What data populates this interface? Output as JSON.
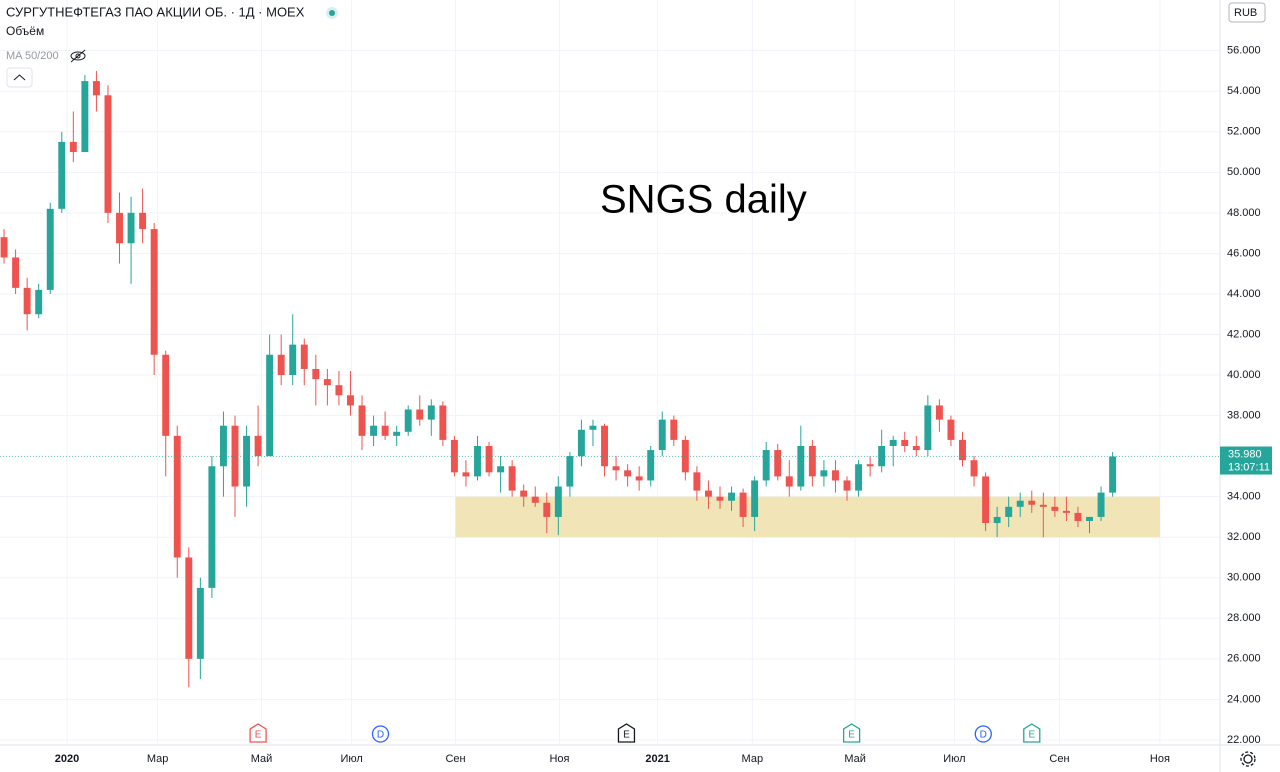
{
  "header": {
    "symbol": "СУРГУТНЕФТЕГАЗ ПАО АКЦИИ ОБ. · 1Д · MOEX",
    "volume_label": "Объём",
    "ma_label": "MA 50/200",
    "currency": "RUB"
  },
  "chart_data": {
    "type": "candlestick",
    "annotation": "SNGS daily",
    "up_color": "#26a69a",
    "down_color": "#ef5350",
    "grid": true,
    "categories": [
      null,
      null,
      null,
      null,
      null,
      null,
      null,
      null,
      null,
      null,
      null,
      null,
      null,
      null,
      null,
      null,
      null,
      null,
      null,
      null,
      null,
      null,
      null,
      null,
      null,
      null,
      null,
      null,
      null,
      null,
      null,
      null,
      null,
      null,
      null,
      null,
      null,
      null,
      null,
      null,
      null,
      null,
      null,
      null,
      null,
      null,
      null,
      null,
      null,
      null,
      null,
      null,
      null,
      null,
      null,
      null,
      null,
      null,
      null,
      null,
      null,
      null,
      null,
      null,
      null,
      null,
      null,
      null,
      null,
      null,
      null,
      null,
      null,
      null,
      null,
      null,
      null,
      null,
      null,
      null,
      null,
      null,
      null,
      null,
      null,
      null,
      null,
      null,
      null,
      null,
      null,
      null,
      null,
      null,
      null,
      null,
      null
    ],
    "open": [
      46.8,
      45.8,
      44.3,
      43,
      44.2,
      48.2,
      51.5,
      51,
      54.5,
      53.8,
      48,
      46.5,
      48,
      47.2,
      41,
      37,
      31,
      26,
      29.5,
      35.5,
      37.5,
      34.5,
      37,
      36,
      41,
      40,
      41.5,
      40.3,
      39.8,
      39.5,
      39,
      38.5,
      37,
      37.5,
      37,
      37.2,
      38.3,
      37.8,
      38.5,
      36.8,
      35.2,
      35,
      36.5,
      35.2,
      35.5,
      34.3,
      34,
      33.7,
      33,
      34.5,
      36,
      37.3,
      37.5,
      35.5,
      35.3,
      35,
      34.8,
      36.3,
      37.8,
      36.8,
      35.2,
      34.3,
      34,
      33.8,
      34.2,
      33,
      34.8,
      36.3,
      35,
      34.5,
      36.5,
      35,
      35.3,
      34.8,
      34.3,
      35.6,
      35.5,
      36.5,
      36.8,
      36.5,
      36.3,
      38.5,
      37.8,
      36.8,
      35.8,
      35,
      32.7,
      33,
      33.5,
      33.8,
      33.6,
      33.5,
      33.3,
      33.2,
      32.8,
      33,
      34.2
    ],
    "high": [
      47.2,
      46.2,
      44.8,
      44.5,
      48.5,
      52,
      53,
      54.8,
      55,
      54.3,
      49,
      48.8,
      49.2,
      47.5,
      41.2,
      37.5,
      31.5,
      30,
      36,
      38.2,
      38,
      37.5,
      38.5,
      42,
      42,
      43,
      41.8,
      41,
      40.3,
      40.2,
      40.2,
      39,
      38,
      38.2,
      37.5,
      38.5,
      39,
      38.8,
      38.7,
      37,
      35.8,
      37,
      36.7,
      36,
      35.8,
      34.6,
      34.5,
      34.2,
      35,
      36.2,
      37.8,
      37.8,
      37.6,
      36,
      35.6,
      35.5,
      36.5,
      38.2,
      38,
      37,
      35.5,
      34.8,
      34.5,
      34.5,
      34.4,
      35,
      36.7,
      36.6,
      35.8,
      37.5,
      36.8,
      35.8,
      35.8,
      35,
      35.8,
      36,
      37.3,
      37,
      37.2,
      37,
      39,
      38.8,
      38,
      37.2,
      36,
      35.2,
      33.5,
      34,
      34.2,
      34.3,
      34.2,
      34,
      34,
      33.5,
      33,
      34.5,
      36.2
    ],
    "low": [
      45.5,
      44,
      42.2,
      42.8,
      44,
      48,
      50.5,
      51,
      53,
      47.5,
      45.5,
      44.5,
      46.5,
      40,
      35,
      30,
      24.6,
      25,
      29,
      34,
      33,
      33.5,
      35.5,
      36,
      39.5,
      39.5,
      39.5,
      38.5,
      38.5,
      38.5,
      38,
      36.3,
      36.5,
      36.8,
      36.5,
      37,
      37.5,
      37,
      36.5,
      35,
      34.5,
      34.8,
      35,
      34.2,
      34,
      33.5,
      33.5,
      32.2,
      32.1,
      34,
      35.5,
      36.5,
      35,
      34.8,
      34.5,
      34.3,
      34.5,
      36,
      36.5,
      34.8,
      33.8,
      33.4,
      33.4,
      33.3,
      32.5,
      32.3,
      34.5,
      34.8,
      34,
      34.3,
      34.5,
      34.5,
      34.2,
      33.8,
      34,
      35,
      35.2,
      35.5,
      36.2,
      36,
      36,
      37.2,
      36.5,
      35.5,
      34.5,
      32.3,
      32,
      32.5,
      33,
      33.2,
      32,
      33,
      32.8,
      32.5,
      32.2,
      32.8,
      34
    ],
    "close": [
      45.8,
      44.3,
      43,
      44.2,
      48.2,
      51.5,
      51,
      54.5,
      53.8,
      48,
      46.5,
      48,
      47.2,
      41,
      37,
      31,
      26,
      29.5,
      35.5,
      37.5,
      34.5,
      37,
      36,
      41,
      40,
      41.5,
      40.3,
      39.8,
      39.5,
      39,
      38.5,
      37,
      37.5,
      37,
      37.2,
      38.3,
      37.8,
      38.5,
      36.8,
      35.2,
      35,
      36.5,
      35.2,
      35.5,
      34.3,
      34,
      33.7,
      33,
      34.5,
      36,
      37.3,
      37.5,
      35.5,
      35.3,
      35,
      34.8,
      36.3,
      37.8,
      36.8,
      35.2,
      34.3,
      34,
      33.8,
      34.2,
      33,
      34.8,
      36.3,
      35,
      34.5,
      36.5,
      35,
      35.3,
      34.8,
      34.3,
      35.6,
      35.5,
      36.5,
      36.8,
      36.5,
      36.3,
      38.5,
      37.8,
      36.8,
      35.8,
      35,
      32.7,
      33,
      33.5,
      33.8,
      33.6,
      33.5,
      33.3,
      33.2,
      32.8,
      33,
      34.2,
      35.98
    ],
    "ylim": [
      21.75,
      58.5
    ],
    "yticks": [
      {
        "value": 22,
        "label": "22.000"
      },
      {
        "value": 24,
        "label": "24.000"
      },
      {
        "value": 26,
        "label": "26.000"
      },
      {
        "value": 28,
        "label": "28.000"
      },
      {
        "value": 30,
        "label": "30.000"
      },
      {
        "value": 32,
        "label": "32.000"
      },
      {
        "value": 34,
        "label": "34.000"
      },
      {
        "value": 36,
        "label": "36.000"
      },
      {
        "value": 38,
        "label": "38.000"
      },
      {
        "value": 40,
        "label": "40.000"
      },
      {
        "value": 42,
        "label": "42.000"
      },
      {
        "value": 44,
        "label": "44.000"
      },
      {
        "value": 46,
        "label": "46.000"
      },
      {
        "value": 48,
        "label": "48.000"
      },
      {
        "value": 50,
        "label": "50.000"
      },
      {
        "value": 52,
        "label": "52.000"
      },
      {
        "value": 54,
        "label": "54.000"
      },
      {
        "value": 56,
        "label": "56.000"
      }
    ],
    "xlim": [
      -0.35,
      105.3
    ],
    "xticks": [
      {
        "value": 5.45,
        "label": "2020"
      },
      {
        "value": 13.3,
        "label": "Мар"
      },
      {
        "value": 22.3,
        "label": "Май"
      },
      {
        "value": 30.1,
        "label": "Июл"
      },
      {
        "value": 39.1,
        "label": "Сен"
      },
      {
        "value": 48.1,
        "label": "Ноя"
      },
      {
        "value": 56.6,
        "label": "2021"
      },
      {
        "value": 64.8,
        "label": "Мар"
      },
      {
        "value": 73.7,
        "label": "Май"
      },
      {
        "value": 82.3,
        "label": "Июл"
      },
      {
        "value": 91.4,
        "label": "Сен"
      },
      {
        "value": 100.1,
        "label": "Ноя"
      }
    ],
    "zone": {
      "x": [
        39.1,
        100.1
      ],
      "y": [
        32,
        34
      ],
      "color": "#f0e2b0"
    },
    "last": {
      "value": 35.98,
      "label": "35.980",
      "time": "13:07:11"
    },
    "events": [
      {
        "x": 22,
        "label": "E",
        "color": "#ef5350"
      },
      {
        "x": 32.6,
        "label": "D",
        "color": "#2962ff"
      },
      {
        "x": 53.9,
        "label": "E",
        "color": "#131722"
      },
      {
        "x": 73.4,
        "label": "E",
        "color": "#26a69a"
      },
      {
        "x": 84.8,
        "label": "D",
        "color": "#2962ff"
      },
      {
        "x": 89,
        "label": "E",
        "color": "#26a69a"
      }
    ]
  }
}
